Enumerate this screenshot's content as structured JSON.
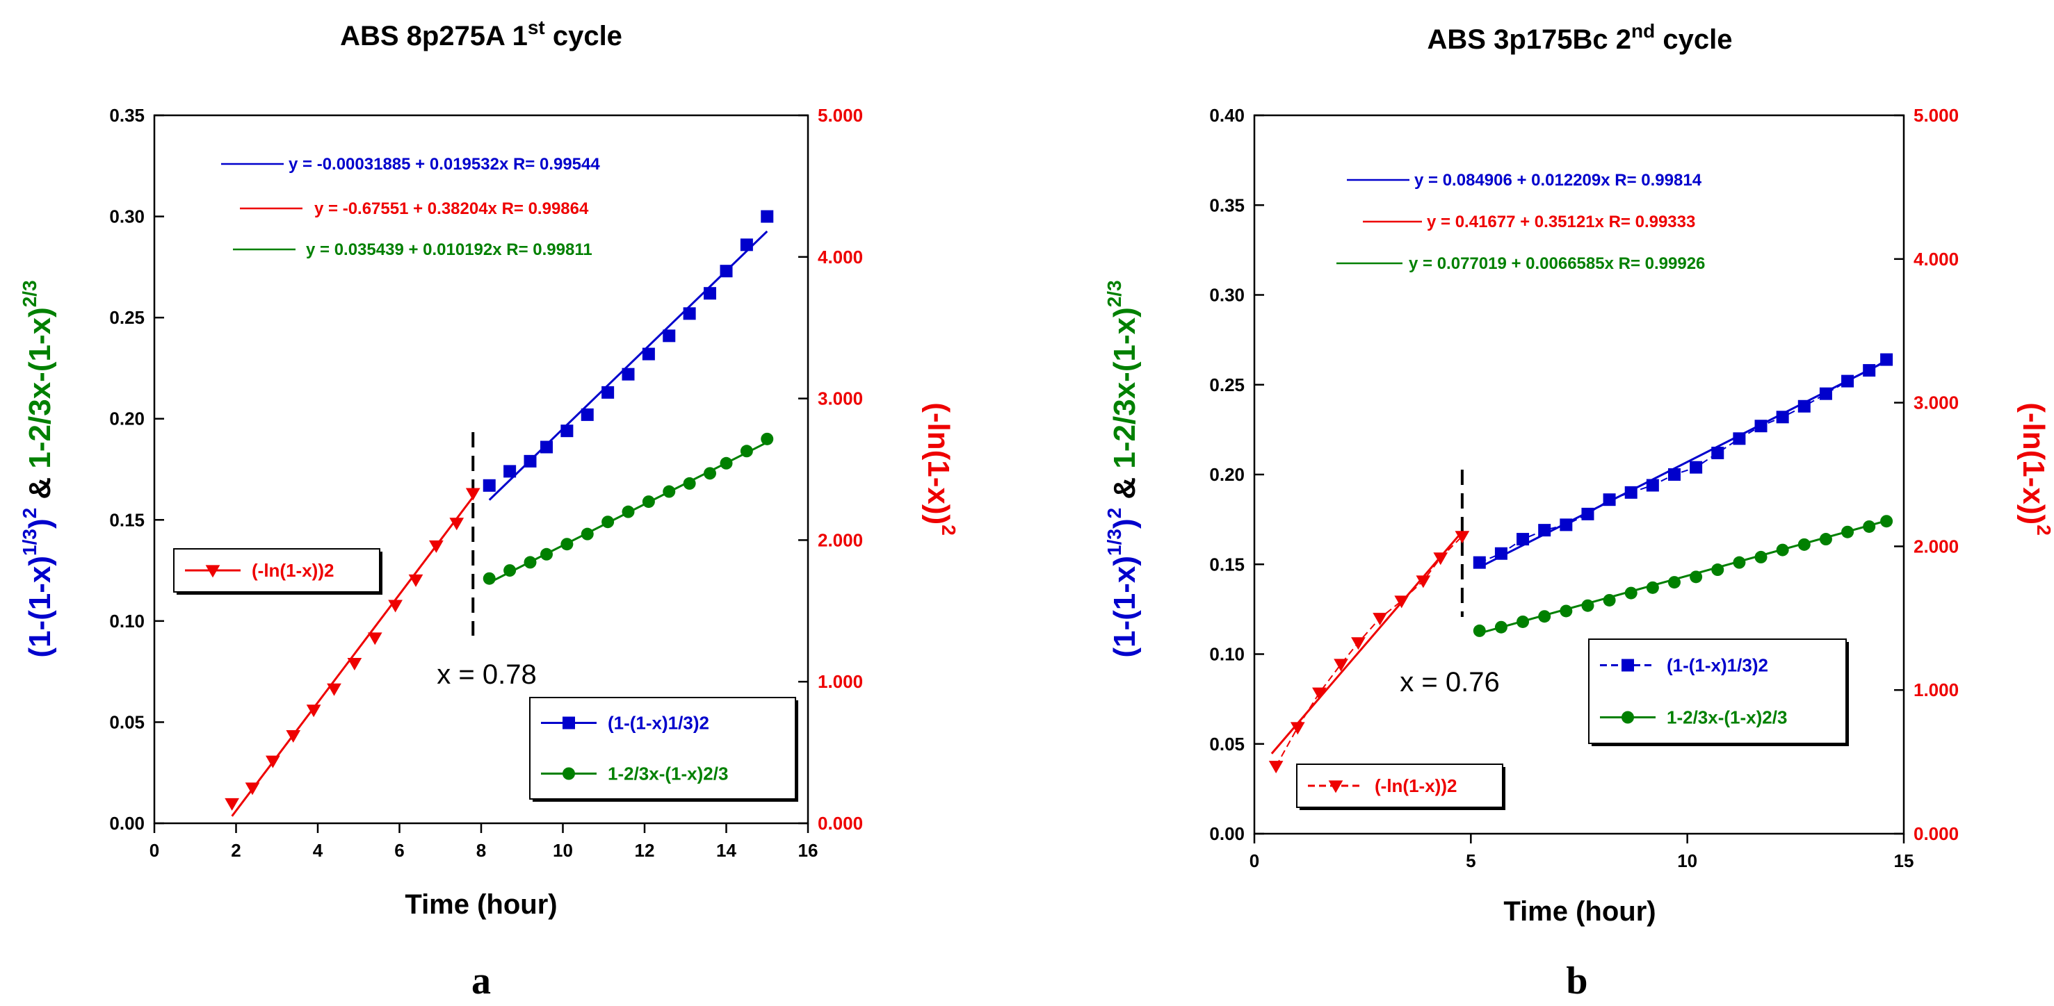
{
  "chart_data": [
    {
      "type": "scatter",
      "panel_label": "a",
      "title": "ABS 8p275A 1",
      "title_sup": "st",
      "title_suffix": " cycle",
      "xlabel": "Time (hour)",
      "ylabel": "(1-(1-x)1/3)2 & 1-2/3x-(1-x)2/3",
      "ylabel_parts": {
        "p1": "(1-(1-x)",
        "p1_sup": "1/3",
        "p2": ")",
        "p2_sup": "2",
        "amp": " & ",
        "p3": "1-2/3x-(1-x)",
        "p3_sup": "2/3"
      },
      "y2label": "(-ln(1-x))2",
      "y2label_parts": {
        "base": "(-ln(1-x))",
        "sup": "2"
      },
      "xlim": [
        0,
        16
      ],
      "xticks": [
        0,
        2,
        4,
        6,
        8,
        10,
        12,
        14,
        16
      ],
      "xtick_labels": [
        "0",
        "2",
        "4",
        "6",
        "8",
        "10",
        "12",
        "14",
        "16"
      ],
      "ylim": [
        0,
        0.35
      ],
      "yticks": [
        0,
        0.05,
        0.1,
        0.15,
        0.2,
        0.25,
        0.3,
        0.35
      ],
      "ytick_labels": [
        "0.00",
        "0.05",
        "0.10",
        "0.15",
        "0.20",
        "0.25",
        "0.30",
        "0.35"
      ],
      "y2lim": [
        0,
        5
      ],
      "y2ticks": [
        0,
        1,
        2,
        3,
        4,
        5
      ],
      "y2tick_labels": [
        "0.000",
        "1.000",
        "2.000",
        "3.000",
        "4.000",
        "5.000"
      ],
      "transition": {
        "x": 7.8,
        "label": "x = 0.78"
      },
      "equations": [
        {
          "text": "y = -0.00031885 + 0.019532x   R= 0.99544",
          "color": "#0000cc"
        },
        {
          "text": "y = -0.67551 + 0.38204x   R= 0.99864",
          "color": "#ee0000"
        },
        {
          "text": "y = 0.035439 + 0.010192x   R= 0.99811",
          "color": "#008000"
        }
      ],
      "legend_left": [
        {
          "label": "(-ln(1-x))2",
          "color": "#ee0000",
          "marker": "triangle-down",
          "dashed": false
        }
      ],
      "legend_right": [
        {
          "label": "(1-(1-x)1/3)2",
          "color": "#0000cc",
          "marker": "square",
          "dashed": false
        },
        {
          "label": "1-2/3x-(1-x)2/3",
          "color": "#008000",
          "marker": "circle",
          "dashed": false
        }
      ],
      "series": [
        {
          "name": "(-ln(1-x))2",
          "axis": "right",
          "color": "#ee0000",
          "marker": "triangle-down",
          "x": [
            1.9,
            2.4,
            2.9,
            3.4,
            3.9,
            4.4,
            4.9,
            5.4,
            5.9,
            6.4,
            6.9,
            7.4,
            7.8
          ],
          "y": [
            0.14,
            0.25,
            0.44,
            0.62,
            0.8,
            0.95,
            1.13,
            1.31,
            1.54,
            1.72,
            1.96,
            2.12,
            2.33
          ],
          "fit": {
            "intercept": -0.67551,
            "slope": 0.38204,
            "x0": 1.9,
            "x1": 7.8
          }
        },
        {
          "name": "(1-(1-x)1/3)2",
          "axis": "left",
          "color": "#0000cc",
          "marker": "square",
          "x": [
            8.2,
            8.7,
            9.2,
            9.6,
            10.1,
            10.6,
            11.1,
            11.6,
            12.1,
            12.6,
            13.1,
            13.6,
            14.0,
            14.5,
            15.0
          ],
          "y": [
            0.167,
            0.174,
            0.179,
            0.186,
            0.194,
            0.202,
            0.213,
            0.222,
            0.232,
            0.241,
            0.252,
            0.262,
            0.273,
            0.286,
            0.3
          ],
          "fit": {
            "intercept": -0.00031885,
            "slope": 0.019532,
            "x0": 8.2,
            "x1": 15.0
          }
        },
        {
          "name": "1-2/3x-(1-x)2/3",
          "axis": "left",
          "color": "#008000",
          "marker": "circle",
          "x": [
            8.2,
            8.7,
            9.2,
            9.6,
            10.1,
            10.6,
            11.1,
            11.6,
            12.1,
            12.6,
            13.1,
            13.6,
            14.0,
            14.5,
            15.0
          ],
          "y": [
            0.121,
            0.125,
            0.129,
            0.133,
            0.138,
            0.143,
            0.149,
            0.154,
            0.159,
            0.164,
            0.168,
            0.173,
            0.178,
            0.184,
            0.19
          ],
          "fit": {
            "intercept": 0.035439,
            "slope": 0.010192,
            "x0": 8.2,
            "x1": 15.0
          }
        }
      ]
    },
    {
      "type": "scatter",
      "panel_label": "b",
      "title": "ABS 3p175Bc 2",
      "title_sup": "nd",
      "title_suffix": " cycle",
      "xlabel": "Time (hour)",
      "ylabel": "(1-(1-x)1/3)2 & 1-2/3x-(1-x)2/3",
      "ylabel_parts": {
        "p1": "(1-(1-x)",
        "p1_sup": "1/3",
        "p2": ")",
        "p2_sup": "2",
        "amp": " & ",
        "p3": "1-2/3x-(1-x)",
        "p3_sup": "2/3"
      },
      "y2label": "(-ln(1-x))2",
      "y2label_parts": {
        "base": "(-ln(1-x))",
        "sup": "2"
      },
      "xlim": [
        0,
        15
      ],
      "xticks": [
        0,
        5,
        10,
        15
      ],
      "xtick_labels": [
        "0",
        "5",
        "10",
        "15"
      ],
      "ylim": [
        0,
        0.4
      ],
      "yticks": [
        0,
        0.05,
        0.1,
        0.15,
        0.2,
        0.25,
        0.3,
        0.35,
        0.4
      ],
      "ytick_labels": [
        "0.00",
        "0.05",
        "0.10",
        "0.15",
        "0.20",
        "0.25",
        "0.30",
        "0.35",
        "0.40"
      ],
      "y2lim": [
        0,
        5
      ],
      "y2ticks": [
        0,
        1,
        2,
        3,
        4,
        5
      ],
      "y2tick_labels": [
        "0.000",
        "1.000",
        "2.000",
        "3.000",
        "4.000",
        "5.000"
      ],
      "transition": {
        "x": 4.8,
        "label": "x = 0.76"
      },
      "equations": [
        {
          "text": "y = 0.084906 + 0.012209x   R= 0.99814",
          "color": "#0000cc"
        },
        {
          "text": "y = 0.41677 + 0.35121x   R= 0.99333",
          "color": "#ee0000"
        },
        {
          "text": "y = 0.077019 + 0.0066585x   R= 0.99926",
          "color": "#008000"
        }
      ],
      "legend_left": [
        {
          "label": "(-ln(1-x))2",
          "color": "#ee0000",
          "marker": "triangle-down",
          "dashed": true
        }
      ],
      "legend_right": [
        {
          "label": "(1-(1-x)1/3)2",
          "color": "#0000cc",
          "marker": "square",
          "dashed": true
        },
        {
          "label": "1-2/3x-(1-x)2/3",
          "color": "#008000",
          "marker": "circle",
          "dashed": false
        }
      ],
      "series": [
        {
          "name": "(-ln(1-x))2",
          "axis": "right",
          "color": "#ee0000",
          "marker": "triangle-down",
          "x": [
            0.5,
            1.0,
            1.5,
            2.0,
            2.4,
            2.9,
            3.4,
            3.9,
            4.3,
            4.8
          ],
          "y": [
            0.47,
            0.74,
            0.98,
            1.18,
            1.33,
            1.5,
            1.62,
            1.76,
            1.92,
            2.07
          ],
          "fit": {
            "intercept": 0.41677,
            "slope": 0.35121,
            "x0": 0.4,
            "x1": 4.8
          }
        },
        {
          "name": "(1-(1-x)1/3)2",
          "axis": "left",
          "color": "#0000cc",
          "marker": "square",
          "x": [
            5.2,
            5.7,
            6.2,
            6.7,
            7.2,
            7.7,
            8.2,
            8.7,
            9.2,
            9.7,
            10.2,
            10.7,
            11.2,
            11.7,
            12.2,
            12.7,
            13.2,
            13.7,
            14.2,
            14.6
          ],
          "y": [
            0.151,
            0.156,
            0.164,
            0.169,
            0.172,
            0.178,
            0.186,
            0.19,
            0.194,
            0.2,
            0.204,
            0.212,
            0.22,
            0.227,
            0.232,
            0.238,
            0.245,
            0.252,
            0.258,
            0.264
          ],
          "fit": {
            "intercept": 0.084906,
            "slope": 0.012209,
            "x0": 5.2,
            "x1": 14.6
          }
        },
        {
          "name": "1-2/3x-(1-x)2/3",
          "axis": "left",
          "color": "#008000",
          "marker": "circle",
          "x": [
            5.2,
            5.7,
            6.2,
            6.7,
            7.2,
            7.7,
            8.2,
            8.7,
            9.2,
            9.7,
            10.2,
            10.7,
            11.2,
            11.7,
            12.2,
            12.7,
            13.2,
            13.7,
            14.2,
            14.6
          ],
          "y": [
            0.113,
            0.115,
            0.118,
            0.121,
            0.124,
            0.127,
            0.13,
            0.134,
            0.137,
            0.14,
            0.143,
            0.147,
            0.151,
            0.154,
            0.158,
            0.161,
            0.164,
            0.168,
            0.171,
            0.174
          ],
          "fit": {
            "intercept": 0.077019,
            "slope": 0.0066585,
            "x0": 5.2,
            "x1": 14.6
          }
        }
      ]
    }
  ]
}
